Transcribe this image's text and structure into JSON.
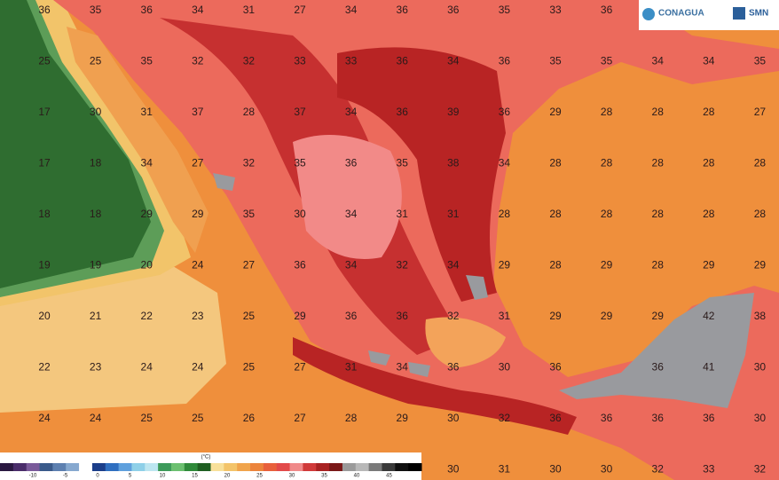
{
  "map": {
    "logos": [
      "CONAGUA",
      "SMN"
    ],
    "unit": "(°C)",
    "colorbar_labels": [
      "-10",
      "-5",
      "0",
      "5",
      "10",
      "15",
      "20",
      "25",
      "30",
      "35",
      "40",
      "45"
    ],
    "grid": [
      [
        "36",
        "35",
        "36",
        "34",
        "31",
        "27",
        "34",
        "36",
        "36",
        "35",
        "33",
        "36",
        null,
        null,
        null
      ],
      [
        "25",
        "25",
        "35",
        "32",
        "32",
        "33",
        "33",
        "36",
        "34",
        "36",
        "35",
        "35",
        "34",
        "34",
        "35"
      ],
      [
        "17",
        "30",
        "31",
        "37",
        "28",
        "37",
        "34",
        "36",
        "39",
        "36",
        "29",
        "28",
        "28",
        "28",
        "27"
      ],
      [
        "17",
        "18",
        "34",
        "27",
        "32",
        "35",
        "36",
        "35",
        "38",
        "34",
        "28",
        "28",
        "28",
        "28",
        "28"
      ],
      [
        "18",
        "18",
        "29",
        "29",
        "35",
        "30",
        "34",
        "31",
        "31",
        "28",
        "28",
        "28",
        "28",
        "28",
        "28"
      ],
      [
        "19",
        "19",
        "20",
        "24",
        "27",
        "36",
        "34",
        "32",
        "34",
        "29",
        "28",
        "29",
        "28",
        "29",
        "29"
      ],
      [
        "20",
        "21",
        "22",
        "23",
        "25",
        "29",
        "36",
        "36",
        "32",
        "31",
        "29",
        "29",
        "29",
        "42",
        "38"
      ],
      [
        "22",
        "23",
        "24",
        "24",
        "25",
        "27",
        "31",
        "34",
        "36",
        "30",
        "36",
        null,
        "36",
        "41",
        "30"
      ],
      [
        "24",
        "24",
        "25",
        "25",
        "26",
        "27",
        "28",
        "29",
        "30",
        "32",
        "36",
        "36",
        "36",
        "36",
        "30"
      ],
      [
        null,
        null,
        null,
        null,
        null,
        null,
        null,
        null,
        "30",
        "31",
        "30",
        "30",
        "32",
        "33",
        "32"
      ]
    ]
  }
}
